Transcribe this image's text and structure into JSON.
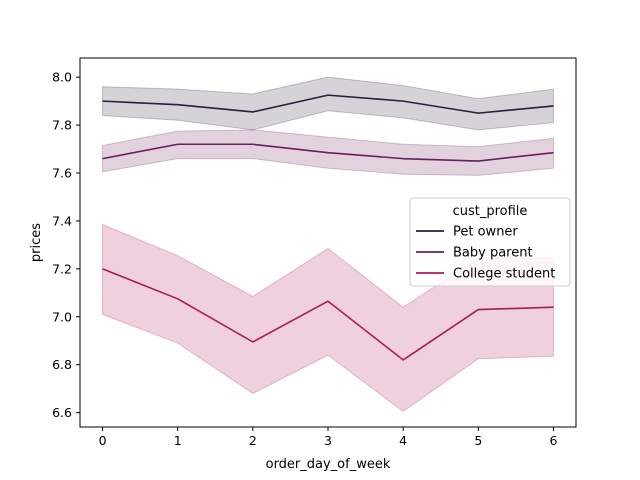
{
  "chart_data": {
    "type": "line",
    "title": "",
    "xlabel": "order_day_of_week",
    "ylabel": "prices",
    "x": [
      0,
      1,
      2,
      3,
      4,
      5,
      6
    ],
    "xlim": [
      -0.3,
      6.3
    ],
    "ylim": [
      6.54,
      8.08
    ],
    "xticks": [
      0,
      1,
      2,
      3,
      4,
      5,
      6
    ],
    "yticks": [
      6.6,
      6.8,
      7.0,
      7.2,
      7.4,
      7.6,
      7.8,
      8.0
    ],
    "ytick_labels": [
      "6.6",
      "6.8",
      "7.0",
      "7.2",
      "7.4",
      "7.6",
      "7.8",
      "8.0"
    ],
    "grid": false,
    "legend": {
      "title": "cust_profile",
      "placement": "center-right"
    },
    "series": [
      {
        "name": "Pet owner",
        "color": "#2d1e3e",
        "values": [
          7.9,
          7.885,
          7.855,
          7.925,
          7.9,
          7.85,
          7.88
        ],
        "ci_lower": [
          7.84,
          7.82,
          7.78,
          7.86,
          7.83,
          7.78,
          7.81
        ],
        "ci_upper": [
          7.96,
          7.95,
          7.93,
          8.0,
          7.965,
          7.91,
          7.95
        ]
      },
      {
        "name": "Baby parent",
        "color": "#6b1e5c",
        "values": [
          7.66,
          7.72,
          7.72,
          7.685,
          7.66,
          7.65,
          7.685
        ],
        "ci_lower": [
          7.605,
          7.66,
          7.66,
          7.62,
          7.595,
          7.59,
          7.62
        ],
        "ci_upper": [
          7.715,
          7.775,
          7.78,
          7.75,
          7.72,
          7.71,
          7.745
        ]
      },
      {
        "name": "College student",
        "color": "#b0185a",
        "values": [
          7.2,
          7.075,
          6.895,
          7.065,
          6.82,
          7.03,
          7.04
        ],
        "ci_lower": [
          7.01,
          6.89,
          6.68,
          6.84,
          6.605,
          6.825,
          6.835
        ],
        "ci_upper": [
          7.385,
          7.255,
          7.085,
          7.285,
          7.04,
          7.245,
          7.245
        ]
      }
    ]
  }
}
